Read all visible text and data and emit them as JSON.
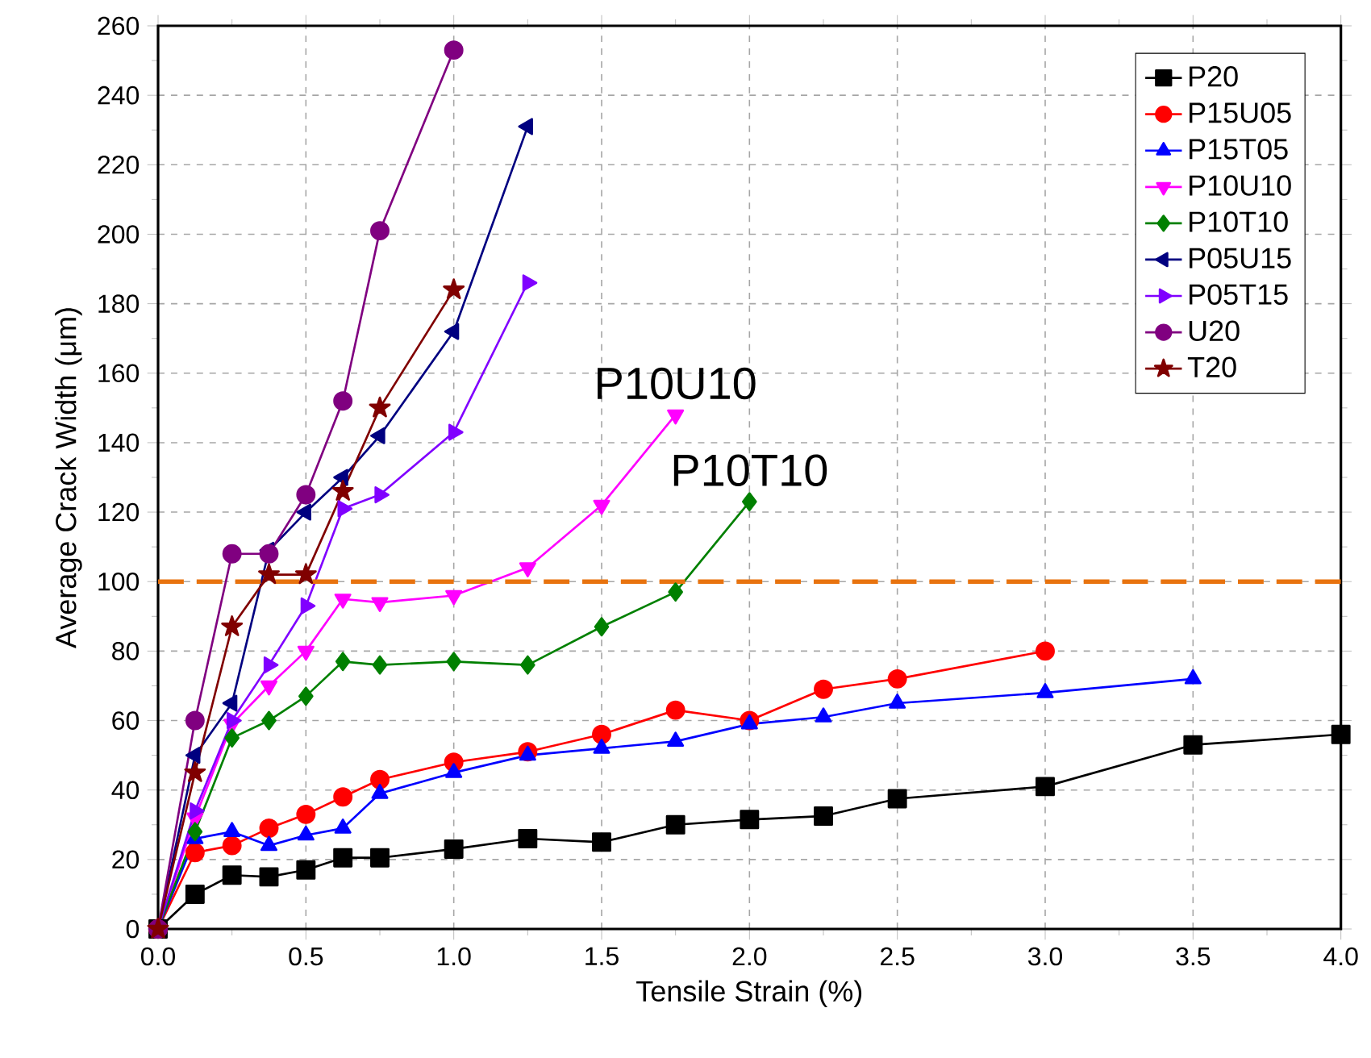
{
  "chart_data": {
    "type": "line",
    "xlabel": "Tensile Strain (%)",
    "ylabel": "Average Crack Width (μm)",
    "xlim": [
      0,
      4
    ],
    "ylim": [
      0,
      260
    ],
    "xticks": [
      {
        "value": 0,
        "label": "0.0"
      },
      0.5,
      {
        "value": 1,
        "label": "1.0"
      },
      1.5,
      {
        "value": 2,
        "label": "2.0"
      },
      2.5,
      {
        "value": 3,
        "label": "3.0"
      },
      3.5,
      {
        "value": 4,
        "label": "4.0"
      }
    ],
    "yticks": [
      0,
      20,
      40,
      60,
      80,
      100,
      120,
      140,
      160,
      180,
      200,
      220,
      240,
      260
    ],
    "grid": true,
    "legend": "top right",
    "ref_lines": [
      {
        "axis": "y",
        "value": 100,
        "color": "#e8730f",
        "line_style": "dashed"
      }
    ],
    "annotations": [
      {
        "text": "P10U10",
        "x": 1.75,
        "y": 148
      },
      {
        "text": "P10T10",
        "x": 2.0,
        "y": 123
      }
    ],
    "series": [
      {
        "name": "P20",
        "color": "#000000",
        "marker": "square",
        "x": [
          0,
          0.125,
          0.25,
          0.375,
          0.5,
          0.625,
          0.75,
          1.0,
          1.25,
          1.5,
          1.75,
          2.0,
          2.25,
          2.5,
          3.0,
          3.5,
          4.0
        ],
        "values": [
          0,
          10,
          15.5,
          15,
          17,
          20.5,
          20.5,
          23,
          26,
          25,
          30,
          31.5,
          32.5,
          37.5,
          41,
          53,
          56
        ]
      },
      {
        "name": "P15U05",
        "color": "#ff0000",
        "marker": "circle",
        "x": [
          0,
          0.125,
          0.25,
          0.375,
          0.5,
          0.625,
          0.75,
          1.0,
          1.25,
          1.5,
          1.75,
          2.0,
          2.25,
          2.5,
          3.0
        ],
        "values": [
          0,
          22,
          24,
          29,
          33,
          38,
          43,
          48,
          51,
          56,
          63,
          60,
          69,
          72,
          80
        ]
      },
      {
        "name": "P15T05",
        "color": "#0000ff",
        "marker": "triangle",
        "x": [
          0,
          0.125,
          0.25,
          0.375,
          0.5,
          0.625,
          0.75,
          1.0,
          1.25,
          1.5,
          1.75,
          2.0,
          2.25,
          2.5,
          3.0,
          3.5
        ],
        "values": [
          0,
          26,
          28,
          24,
          27,
          29,
          39,
          45,
          50,
          52,
          54,
          59,
          61,
          65,
          68,
          72
        ]
      },
      {
        "name": "P10U10",
        "color": "#ff00ff",
        "marker": "triangle-down",
        "x": [
          0,
          0.125,
          0.25,
          0.375,
          0.5,
          0.625,
          0.75,
          1.0,
          1.25,
          1.5,
          1.75
        ],
        "values": [
          0,
          32,
          59,
          70,
          80,
          95,
          94,
          96,
          104,
          122,
          148
        ]
      },
      {
        "name": "P10T10",
        "color": "#008000",
        "marker": "diamond",
        "x": [
          0,
          0.125,
          0.25,
          0.375,
          0.5,
          0.625,
          0.75,
          1.0,
          1.25,
          1.5,
          1.75,
          2.0
        ],
        "values": [
          0,
          28,
          55,
          60,
          67,
          77,
          76,
          77,
          76,
          87,
          97,
          123
        ]
      },
      {
        "name": "P05U15",
        "color": "#000080",
        "marker": "triangle-left",
        "x": [
          0,
          0.125,
          0.25,
          0.375,
          0.5,
          0.625,
          0.75,
          1.0,
          1.25
        ],
        "values": [
          0,
          50,
          65,
          109,
          120,
          130,
          142,
          172,
          231
        ]
      },
      {
        "name": "P05T15",
        "color": "#8000ff",
        "marker": "triangle-right",
        "x": [
          0,
          0.125,
          0.25,
          0.375,
          0.5,
          0.625,
          0.75,
          1.0,
          1.25
        ],
        "values": [
          0,
          34,
          60,
          76,
          93,
          121,
          125,
          143,
          186
        ]
      },
      {
        "name": "U20",
        "color": "#800080",
        "marker": "circle",
        "x": [
          0,
          0.125,
          0.25,
          0.375,
          0.5,
          0.625,
          0.75,
          1.0
        ],
        "values": [
          0,
          60,
          108,
          108,
          125,
          152,
          201,
          253
        ]
      },
      {
        "name": "T20",
        "color": "#800000",
        "marker": "star",
        "x": [
          0,
          0.125,
          0.25,
          0.375,
          0.5,
          0.625,
          0.75,
          1.0
        ],
        "values": [
          0,
          45,
          87,
          102,
          102,
          126,
          150,
          184
        ]
      }
    ]
  }
}
